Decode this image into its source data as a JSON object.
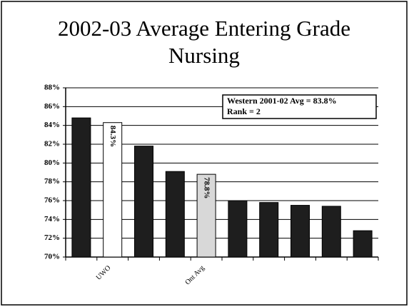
{
  "chart_data": {
    "type": "bar",
    "title": "2002-03 Average Entering Grade",
    "subtitle": "Nursing",
    "annotations": [
      "Western 2001-02 Avg = 83.8%",
      "Rank = 2"
    ],
    "categories": [
      null,
      "UWO",
      null,
      null,
      "Ont Avg",
      null,
      null,
      null,
      null,
      null
    ],
    "values": [
      84.8,
      84.3,
      81.8,
      79.1,
      78.8,
      76.0,
      75.8,
      75.5,
      75.4,
      72.8
    ],
    "value_labels": [
      null,
      "84.3%",
      null,
      null,
      "78.8%",
      null,
      null,
      null,
      null,
      null
    ],
    "colors": [
      "#1e1e1e",
      "#ffffff",
      "#1e1e1e",
      "#1e1e1e",
      "#d8d8d8",
      "#1e1e1e",
      "#1e1e1e",
      "#1e1e1e",
      "#1e1e1e",
      "#1e1e1e"
    ],
    "ylim": [
      70,
      88
    ],
    "yticks": [
      {
        "value": 70,
        "label": "70%"
      },
      {
        "value": 72,
        "label": "72%"
      },
      {
        "value": 74,
        "label": "74%"
      },
      {
        "value": 76,
        "label": "76%"
      },
      {
        "value": 78,
        "label": "78%"
      },
      {
        "value": 80,
        "label": "80%"
      },
      {
        "value": 82,
        "label": "82%"
      },
      {
        "value": 84,
        "label": "84%"
      },
      {
        "value": 86,
        "label": "86%"
      },
      {
        "value": 88,
        "label": "88%"
      }
    ],
    "grid": true
  }
}
